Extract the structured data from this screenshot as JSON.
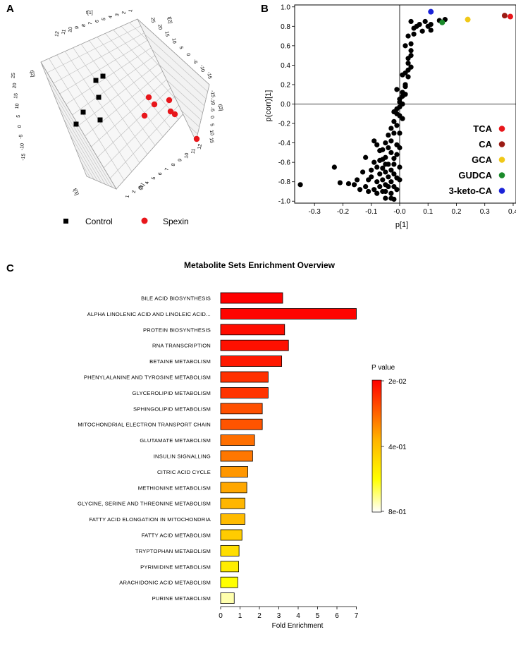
{
  "panels": {
    "a": "A",
    "b": "B",
    "c": "C"
  },
  "colors": {
    "control": "#000000",
    "spexin": "#e8161b",
    "tca": "#e8161b",
    "ca": "#9b1b14",
    "gca": "#f0c818",
    "gudca": "#1a8a2a",
    "keto": "#1b23d8"
  },
  "chart_data": [
    {
      "type": "scatter",
      "name": "3D PLS-DA score plot",
      "axis_titles": [
        "t[1]",
        "t[2]",
        "t[3]"
      ],
      "legend": [
        {
          "label": "Control",
          "marker": "square",
          "color": "#000000"
        },
        {
          "label": "Spexin",
          "marker": "circle",
          "color": "#e8161b"
        }
      ],
      "tick_labels": {
        "top_axis": [
          "12",
          "11",
          "10",
          "9",
          "8",
          "7",
          "6",
          "5",
          "4",
          "3",
          "2",
          "1"
        ],
        "left_axis": [
          "25",
          "20",
          "15",
          "10",
          "5",
          "0",
          "-5",
          "-10",
          "-15"
        ],
        "right_axis": [
          "25",
          "20",
          "15",
          "10",
          "5",
          "0",
          "-5",
          "-10",
          "-15"
        ],
        "bottom_axis": [
          "1",
          "2",
          "3",
          "4",
          "5",
          "6",
          "7",
          "8",
          "9",
          "10",
          "11",
          "12"
        ],
        "floor_axis": [
          "-15",
          "-10",
          "-5",
          "0",
          "5",
          "10",
          "15"
        ]
      }
    },
    {
      "type": "scatter",
      "name": "S-plot",
      "xlabel": "p[1]",
      "ylabel": "p(corr)[1]",
      "xlim": [
        -0.37,
        0.41
      ],
      "ylim": [
        -1.02,
        1.02
      ],
      "xticks": [
        "-0.3",
        "-0.2",
        "-0.1",
        "-0.0",
        "0.1",
        "0.2",
        "0.3",
        "0.4"
      ],
      "yticks": [
        "1.0",
        "0.8",
        "0.6",
        "0.4",
        "0.2",
        "0.0",
        "-0.2",
        "-0.4",
        "-0.6",
        "-0.8",
        "-1.0"
      ],
      "highlighted": [
        {
          "label": "TCA",
          "x": 0.39,
          "y": 0.9,
          "color": "#e8161b"
        },
        {
          "label": "CA",
          "x": 0.37,
          "y": 0.91,
          "color": "#9b1b14"
        },
        {
          "label": "GCA",
          "x": 0.24,
          "y": 0.87,
          "color": "#f0c818"
        },
        {
          "label": "GUDCA",
          "x": 0.15,
          "y": 0.84,
          "color": "#1a8a2a"
        },
        {
          "label": "3-keto-CA",
          "x": 0.11,
          "y": 0.95,
          "color": "#1b23d8"
        }
      ],
      "points": [
        [
          -0.35,
          -0.83
        ],
        [
          -0.23,
          -0.65
        ],
        [
          -0.21,
          -0.81
        ],
        [
          -0.18,
          -0.82
        ],
        [
          -0.16,
          -0.83
        ],
        [
          -0.15,
          -0.78
        ],
        [
          -0.14,
          -0.88
        ],
        [
          -0.13,
          -0.7
        ],
        [
          -0.12,
          -0.85
        ],
        [
          -0.11,
          -0.9
        ],
        [
          -0.1,
          -0.75
        ],
        [
          -0.09,
          -0.88
        ],
        [
          -0.09,
          -0.6
        ],
        [
          -0.08,
          -0.8
        ],
        [
          -0.08,
          -0.92
        ],
        [
          -0.07,
          -0.72
        ],
        [
          -0.07,
          -0.85
        ],
        [
          -0.06,
          -0.9
        ],
        [
          -0.06,
          -0.66
        ],
        [
          -0.06,
          -0.78
        ],
        [
          -0.05,
          -0.83
        ],
        [
          -0.05,
          -0.55
        ],
        [
          -0.05,
          -0.7
        ],
        [
          -0.05,
          -0.9
        ],
        [
          -0.04,
          -0.62
        ],
        [
          -0.04,
          -0.75
        ],
        [
          -0.04,
          -0.85
        ],
        [
          -0.04,
          -0.45
        ],
        [
          -0.03,
          -0.5
        ],
        [
          -0.03,
          -0.68
        ],
        [
          -0.03,
          -0.8
        ],
        [
          -0.03,
          -0.92
        ],
        [
          -0.03,
          -0.38
        ],
        [
          -0.02,
          -0.56
        ],
        [
          -0.02,
          -0.72
        ],
        [
          -0.02,
          -0.85
        ],
        [
          -0.02,
          -0.3
        ],
        [
          -0.02,
          -0.62
        ],
        [
          -0.01,
          -0.42
        ],
        [
          -0.01,
          -0.76
        ],
        [
          -0.01,
          -0.88
        ],
        [
          -0.01,
          -0.52
        ],
        [
          -0.01,
          -0.22
        ],
        [
          0.0,
          -0.65
        ],
        [
          0.0,
          -0.3
        ],
        [
          0.0,
          -0.78
        ],
        [
          0.0,
          -0.12
        ],
        [
          0.0,
          -0.45
        ],
        [
          -0.11,
          -0.78
        ],
        [
          -0.1,
          -0.68
        ],
        [
          -0.08,
          -0.65
        ],
        [
          -0.07,
          -0.58
        ],
        [
          -0.06,
          -0.47
        ],
        [
          -0.05,
          -0.4
        ],
        [
          -0.04,
          -0.32
        ],
        [
          -0.03,
          -0.25
        ],
        [
          -0.02,
          -0.18
        ],
        [
          -0.01,
          -0.1
        ],
        [
          -0.01,
          -0.05
        ],
        [
          0.0,
          0.02
        ],
        [
          0.0,
          0.05
        ],
        [
          0.01,
          0.08
        ],
        [
          0.01,
          0.12
        ],
        [
          0.0,
          -0.03
        ],
        [
          0.01,
          -0.15
        ],
        [
          0.01,
          0.0
        ],
        [
          0.02,
          0.1
        ],
        [
          0.02,
          0.18
        ],
        [
          0.02,
          0.2
        ],
        [
          0.03,
          0.28
        ],
        [
          0.03,
          0.35
        ],
        [
          0.03,
          0.42
        ],
        [
          0.04,
          0.38
        ],
        [
          0.04,
          0.5
        ],
        [
          0.03,
          0.47
        ],
        [
          0.04,
          0.55
        ],
        [
          0.02,
          0.6
        ],
        [
          0.04,
          0.62
        ],
        [
          0.03,
          0.7
        ],
        [
          0.05,
          0.72
        ],
        [
          0.05,
          0.78
        ],
        [
          0.06,
          0.8
        ],
        [
          0.04,
          0.85
        ],
        [
          0.07,
          0.82
        ],
        [
          0.08,
          0.75
        ],
        [
          0.09,
          0.85
        ],
        [
          0.11,
          0.82
        ],
        [
          0.14,
          0.86
        ],
        [
          0.16,
          0.87
        ],
        [
          0.1,
          0.8
        ],
        [
          0.11,
          0.76
        ],
        [
          0.02,
          0.32
        ],
        [
          0.01,
          0.3
        ],
        [
          -0.01,
          0.15
        ],
        [
          -0.02,
          -0.08
        ],
        [
          -0.05,
          -0.62
        ],
        [
          -0.06,
          -0.57
        ],
        [
          -0.07,
          -0.48
        ],
        [
          -0.08,
          -0.42
        ],
        [
          -0.09,
          -0.38
        ],
        [
          -0.03,
          -0.97
        ],
        [
          -0.05,
          -0.97
        ],
        [
          -0.02,
          -0.98
        ],
        [
          -0.12,
          -0.55
        ]
      ]
    },
    {
      "type": "bar",
      "orientation": "horizontal",
      "title": "Metabolite Sets Enrichment Overview",
      "xlabel": "Fold Enrichment",
      "xlim": [
        0,
        7
      ],
      "xticks": [
        "0",
        "1",
        "2",
        "3",
        "4",
        "5",
        "6",
        "7"
      ],
      "categories": [
        "BILE ACID BIOSYNTHESIS",
        "ALPHA LINOLENIC ACID AND LINOLEIC ACID...",
        "PROTEIN BIOSYNTHESIS",
        "RNA TRANSCRIPTION",
        "BETAINE METABOLISM",
        "PHENYLALANINE AND TYROSINE METABOLISM",
        "GLYCEROLIPID METABOLISM",
        "SPHINGOLIPID METABOLISM",
        "MITOCHONDRIAL ELECTRON TRANSPORT CHAIN",
        "GLUTAMATE METABOLISM",
        "INSULIN SIGNALLING",
        "CITRIC ACID CYCLE",
        "METHIONINE METABOLISM",
        "GLYCINE, SERINE AND THREONINE METABOLISM",
        "FATTY ACID ELONGATION IN MITOCHONDRIA",
        "FATTY ACID METABOLISM",
        "TRYPTOPHAN METABOLISM",
        "PYRIMIDINE METABOLISM",
        "ARACHIDONIC ACID METABOLISM",
        "PURINE METABOLISM"
      ],
      "values": [
        3.2,
        7.0,
        3.3,
        3.5,
        3.15,
        2.45,
        2.45,
        2.15,
        2.15,
        1.75,
        1.65,
        1.4,
        1.35,
        1.25,
        1.25,
        1.1,
        0.95,
        0.93,
        0.88,
        0.7
      ],
      "color_rank": [
        0.0,
        0.01,
        0.03,
        0.04,
        0.06,
        0.12,
        0.13,
        0.2,
        0.21,
        0.28,
        0.3,
        0.38,
        0.42,
        0.46,
        0.48,
        0.55,
        0.62,
        0.68,
        0.75,
        0.92
      ],
      "colorbar": {
        "title": "P value",
        "labels": [
          "2e-02",
          "4e-01",
          "8e-01"
        ]
      }
    }
  ]
}
